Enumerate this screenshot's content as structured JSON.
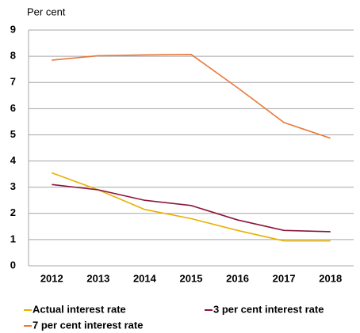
{
  "chart_data": {
    "type": "line",
    "y_label": "Per cent",
    "categories": [
      "2012",
      "2013",
      "2014",
      "2015",
      "2016",
      "2017",
      "2018"
    ],
    "series": [
      {
        "name": "Actual interest rate",
        "color": "#e8b000",
        "values": [
          3.55,
          2.9,
          2.15,
          1.8,
          1.35,
          0.95,
          0.95
        ]
      },
      {
        "name": "3 per cent interest rate",
        "color": "#8b1538",
        "values": [
          3.1,
          2.9,
          2.5,
          2.3,
          1.75,
          1.35,
          1.3
        ]
      },
      {
        "name": "7 per cent interest rate",
        "color": "#e8793a",
        "values": [
          7.85,
          8.02,
          8.05,
          8.07,
          6.8,
          5.47,
          4.87
        ]
      }
    ],
    "ylim": [
      0,
      9
    ],
    "yticks": [
      0,
      1,
      2,
      3,
      4,
      5,
      6,
      7,
      8,
      9
    ],
    "grid": true
  }
}
